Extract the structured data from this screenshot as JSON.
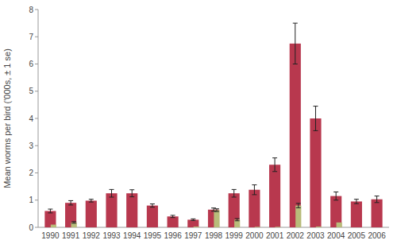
{
  "chart_data": {
    "type": "bar",
    "categories": [
      "1990",
      "1991",
      "1992",
      "1993",
      "1994",
      "1995",
      "1996",
      "1997",
      "1998",
      "1999",
      "2000",
      "2001",
      "2002",
      "2003",
      "2004",
      "2005",
      "2006"
    ],
    "series": [
      {
        "color": "#b8384e",
        "values": [
          0.6,
          0.9,
          0.98,
          1.25,
          1.25,
          0.8,
          0.4,
          0.28,
          0.65,
          1.25,
          1.38,
          2.3,
          6.75,
          4.0,
          1.15,
          0.95,
          1.03
        ],
        "errors": [
          0.07,
          0.08,
          0.05,
          0.14,
          0.13,
          0.06,
          0.04,
          0.03,
          0.06,
          0.14,
          0.18,
          0.25,
          0.75,
          0.45,
          0.15,
          0.08,
          0.12
        ]
      },
      {
        "color": "#b8bc7a",
        "values": [
          0.1,
          0.18,
          0.0,
          0.0,
          0.0,
          0.0,
          0.0,
          0.03,
          0.63,
          0.28,
          0.02,
          0.02,
          0.8,
          0.03,
          0.18,
          0.0,
          0.0
        ],
        "errors": [
          0.0,
          0.03,
          0.0,
          0.0,
          0.0,
          0.0,
          0.0,
          0.0,
          0.05,
          0.04,
          0.0,
          0.0,
          0.08,
          0.0,
          0.0,
          0.0,
          0.0
        ]
      }
    ],
    "ylabel": "Mean worms per bird ('000s, ± 1 se)",
    "ylim": [
      0,
      8
    ],
    "yticks": [
      0,
      1,
      2,
      3,
      4,
      5,
      6,
      7,
      8
    ],
    "grid": false
  }
}
